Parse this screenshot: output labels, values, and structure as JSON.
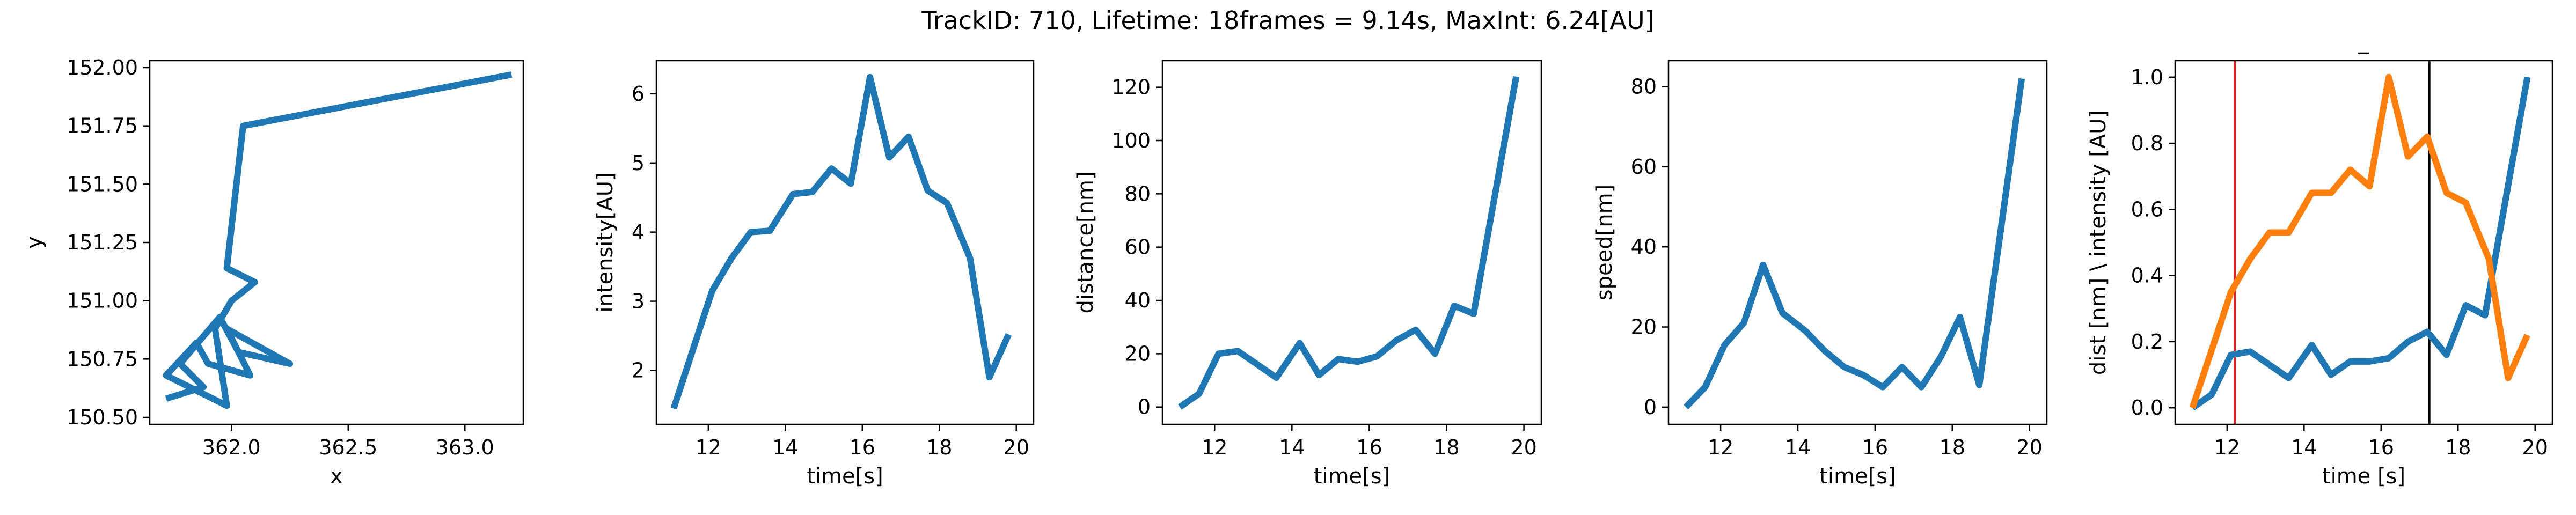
{
  "figure": {
    "suptitle": "TrackID: 710, Lifetime: 18frames = 9.14s, MaxInt: 6.24[AU]"
  },
  "colors": {
    "blue": "#1f77b4",
    "orange": "#ff7f0e",
    "red": "#d62728",
    "black": "#000000"
  },
  "chart_data": [
    {
      "type": "line",
      "title": "",
      "xlabel": "x",
      "ylabel": "y",
      "xlim": [
        361.65,
        363.25
      ],
      "ylim": [
        150.47,
        152.03
      ],
      "xticks": [
        362.0,
        362.5,
        363.0
      ],
      "xtick_labels": [
        "362.0",
        "362.5",
        "363.0"
      ],
      "yticks": [
        150.5,
        150.75,
        151.0,
        151.25,
        151.5,
        151.75,
        152.0
      ],
      "ytick_labels": [
        "150.50",
        "150.75",
        "151.00",
        "151.25",
        "151.50",
        "151.75",
        "152.00"
      ],
      "series": [
        {
          "color": "#1f77b4",
          "x": [
            361.72,
            361.88,
            361.78,
            361.95,
            362.03,
            362.25,
            361.98,
            362.08,
            361.9,
            361.85,
            361.72,
            361.98,
            361.93,
            362.0,
            362.1,
            361.98,
            362.05,
            363.2
          ],
          "y": [
            150.58,
            150.63,
            150.73,
            150.93,
            150.78,
            150.73,
            150.88,
            150.68,
            150.73,
            150.82,
            150.68,
            150.55,
            150.88,
            151.0,
            151.08,
            151.14,
            151.75,
            151.97
          ]
        }
      ]
    },
    {
      "type": "line",
      "title": "",
      "xlabel": "time[s]",
      "ylabel": "intensity[AU]",
      "xlim": [
        10.65,
        20.45
      ],
      "ylim": [
        1.22,
        6.48
      ],
      "xticks": [
        12,
        14,
        16,
        18,
        20
      ],
      "xtick_labels": [
        "12",
        "14",
        "16",
        "18",
        "20"
      ],
      "yticks": [
        2,
        3,
        4,
        5,
        6
      ],
      "ytick_labels": [
        "2",
        "3",
        "4",
        "5",
        "6"
      ],
      "series": [
        {
          "color": "#1f77b4",
          "x": [
            11.1,
            12.1,
            12.6,
            13.1,
            13.6,
            14.2,
            14.7,
            15.2,
            15.7,
            16.2,
            16.7,
            17.2,
            17.7,
            18.2,
            18.8,
            19.3,
            19.8
          ],
          "y": [
            1.45,
            3.15,
            3.62,
            4.0,
            4.02,
            4.55,
            4.58,
            4.92,
            4.7,
            6.24,
            5.08,
            5.38,
            4.6,
            4.42,
            3.62,
            1.9,
            2.52
          ]
        }
      ]
    },
    {
      "type": "line",
      "title": "",
      "xlabel": "time[s]",
      "ylabel": "distance[nm]",
      "xlim": [
        10.65,
        20.45
      ],
      "ylim": [
        -6.5,
        130
      ],
      "xticks": [
        12,
        14,
        16,
        18,
        20
      ],
      "xtick_labels": [
        "12",
        "14",
        "16",
        "18",
        "20"
      ],
      "yticks": [
        0,
        20,
        40,
        60,
        80,
        100,
        120
      ],
      "ytick_labels": [
        "0",
        "20",
        "40",
        "60",
        "80",
        "100",
        "120"
      ],
      "series": [
        {
          "color": "#1f77b4",
          "x": [
            11.1,
            11.6,
            12.1,
            12.6,
            13.1,
            13.6,
            14.2,
            14.7,
            15.2,
            15.7,
            16.2,
            16.7,
            17.2,
            17.7,
            18.2,
            18.7,
            19.8
          ],
          "y": [
            0,
            5,
            20,
            21,
            16,
            11,
            24,
            12,
            18,
            17,
            19,
            25,
            29,
            20,
            38,
            35,
            124
          ]
        }
      ]
    },
    {
      "type": "line",
      "title": "",
      "xlabel": "time[s]",
      "ylabel": "speed[nm]",
      "xlim": [
        10.65,
        20.45
      ],
      "ylim": [
        -4.3,
        86.5
      ],
      "xticks": [
        12,
        14,
        16,
        18,
        20
      ],
      "xtick_labels": [
        "12",
        "14",
        "16",
        "18",
        "20"
      ],
      "yticks": [
        0,
        20,
        40,
        60,
        80
      ],
      "ytick_labels": [
        "0",
        "20",
        "40",
        "60",
        "80"
      ],
      "series": [
        {
          "color": "#1f77b4",
          "x": [
            11.1,
            11.6,
            12.1,
            12.6,
            13.1,
            13.6,
            14.2,
            14.7,
            15.2,
            15.7,
            16.2,
            16.7,
            17.2,
            17.7,
            18.2,
            18.7,
            19.8
          ],
          "y": [
            0,
            5,
            15.5,
            21,
            35.5,
            23.5,
            19,
            14,
            10,
            8,
            5,
            10,
            5,
            12.5,
            22.5,
            5.5,
            82
          ]
        }
      ]
    },
    {
      "type": "line",
      "title": "_",
      "xlabel": "time [s]",
      "ylabel": "dist [nm] \\ intensity [AU]",
      "xlim": [
        10.65,
        20.45
      ],
      "ylim": [
        -0.05,
        1.05
      ],
      "xticks": [
        12,
        14,
        16,
        18,
        20
      ],
      "xtick_labels": [
        "12",
        "14",
        "16",
        "18",
        "20"
      ],
      "yticks": [
        0.0,
        0.2,
        0.4,
        0.6,
        0.8,
        1.0
      ],
      "ytick_labels": [
        "0.0",
        "0.2",
        "0.4",
        "0.6",
        "0.8",
        "1.0"
      ],
      "vlines": [
        {
          "x": 12.2,
          "color": "#d62728"
        },
        {
          "x": 17.25,
          "color": "#000000"
        }
      ],
      "series": [
        {
          "color": "#1f77b4",
          "x": [
            11.1,
            11.6,
            12.1,
            12.6,
            13.1,
            13.6,
            14.2,
            14.7,
            15.2,
            15.7,
            16.2,
            16.7,
            17.2,
            17.7,
            18.2,
            18.7,
            19.8
          ],
          "y": [
            0.0,
            0.04,
            0.16,
            0.17,
            0.13,
            0.09,
            0.19,
            0.1,
            0.14,
            0.14,
            0.15,
            0.2,
            0.23,
            0.16,
            0.31,
            0.28,
            1.0
          ]
        },
        {
          "color": "#ff7f0e",
          "x": [
            11.1,
            12.1,
            12.6,
            13.1,
            13.6,
            14.2,
            14.7,
            15.2,
            15.7,
            16.2,
            16.7,
            17.2,
            17.7,
            18.2,
            18.8,
            19.3,
            19.8
          ],
          "y": [
            0.0,
            0.35,
            0.45,
            0.53,
            0.53,
            0.65,
            0.65,
            0.72,
            0.67,
            1.0,
            0.76,
            0.82,
            0.65,
            0.62,
            0.45,
            0.09,
            0.22
          ]
        }
      ]
    }
  ]
}
